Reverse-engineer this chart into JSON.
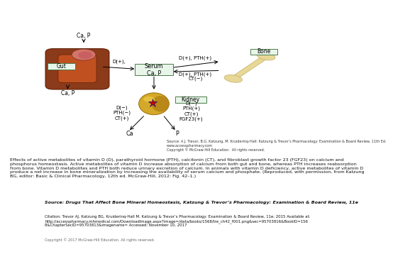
{
  "bg_color": "#ffffff",
  "caption_text": "Effects of active metabolites of vitamin D (D), parathyroid hormone (PTH), calcitonin (CT), and fibroblast growth factor 23 (FGF23) on calcium and\nphosphorus homeostasis. Active metabolites of vitamin D increase absorption of calcium from both gut and bone, whereas PTH increases reabsorption\nfrom bone. Vitamin D metabolites and PTH both reduce urinary excretion of calcium. In animals with vitamin D deficiency, active metabolites of vitamin D\nproduce a net increase in bone mineralization by increasing the availability of serum calcium and phosphate. (Reproduced, with permission, from Katzung\nBG, editor: Basic & Clinical Pharmacology, 12th ed. McGraw-Hill, 2012: Fig. 42–1.)",
  "source_title": "Source: Drugs That Affect Bone Mineral Homeostasis, Katzung & Trevor’s Pharmacology: Examination & Board Review, 11e",
  "source_citation": "Citation: Trevor AJ, Katzung BG, Kruiderinq-Hall M. Katzung & Trevor’s Pharmacology: Examination & Board Review, 11e; 2015 Available at:\nhttp://accesspharmacy.mhmedical.com/Downloadlmage.aspx?image=/data/books/1568/tre_ch42_f001.png&sec=95703816&BookID=156\n8&ChapterSecID=95703813&imagename= Accessed: November 10, 2017",
  "source_copyright": "Copyright © 2017 McGraw-Hill Education. All rights reserved.",
  "diagram_source_line1": "Source: A.J. Trevor, B.G. Katzung, M. Kruiderinq-Hall: Katzung & Trevor’s Pharmacology: Examination & Board Review, 11th Ed.",
  "diagram_source_line2": "www.accesspharmacy.com",
  "diagram_source_line3": "Copyright © McGraw-Hill Education.  All rights reserved.",
  "gut_label": "Gut",
  "serum_label": "Serum\nCa, P",
  "bone_label": "Bone",
  "kidney_label": "Kidney",
  "box_edge_color": "#4a7c4a",
  "box_fill_color": "#e8f5e9",
  "arrow_color": "#000000",
  "mcgraw_box_color": "#c0392b",
  "gut_color_outer": "#8B3A1A",
  "gut_color_inner": "#c05020",
  "stomach_color": "#d4756a",
  "kidney_color_outer": "#d4a020",
  "kidney_color_inner": "#b88010",
  "bone_color": "#e8d898",
  "bone_edge_color": "#c8b870"
}
